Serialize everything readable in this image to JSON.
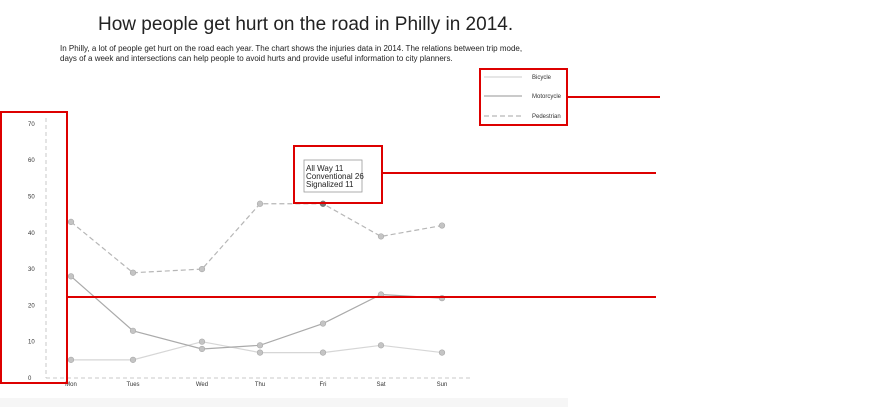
{
  "title": "How people get hurt on the road in Philly in 2014.",
  "description": "In Philly, a lot of people get hurt on the road each year. The chart shows the injuries data in 2014. The relations between trip mode, days of a week and intersections can help people to avoid hurts and provide useful information to city planners.",
  "tooltip": {
    "lines": [
      "All Way 11",
      "Conventional 26",
      "Signalized 11"
    ]
  },
  "colors": {
    "bicycle": "#d6d6d6",
    "motorcycle": "#aaaaaa",
    "pedestrian": "#b6b6b6",
    "annotation": "#dd0000"
  },
  "chart_data": {
    "type": "line",
    "title": "",
    "xlabel": "",
    "ylabel": "",
    "categories": [
      "Mon",
      "Tues",
      "Wed",
      "Thu",
      "Fri",
      "Sat",
      "Sun"
    ],
    "yticks": [
      0,
      10,
      20,
      30,
      40,
      50,
      60,
      70
    ],
    "ylim": [
      0,
      70
    ],
    "grid": false,
    "legend_position": "top-right",
    "series": [
      {
        "name": "Bicycle",
        "style": "solid",
        "values": [
          5,
          5,
          10,
          7,
          7,
          9,
          7
        ]
      },
      {
        "name": "Motorcycle",
        "style": "solid",
        "values": [
          28,
          13,
          8,
          9,
          15,
          23,
          22
        ]
      },
      {
        "name": "Pedestrian",
        "style": "dashed",
        "values": [
          43,
          29,
          30,
          48,
          48,
          39,
          42
        ]
      }
    ]
  }
}
